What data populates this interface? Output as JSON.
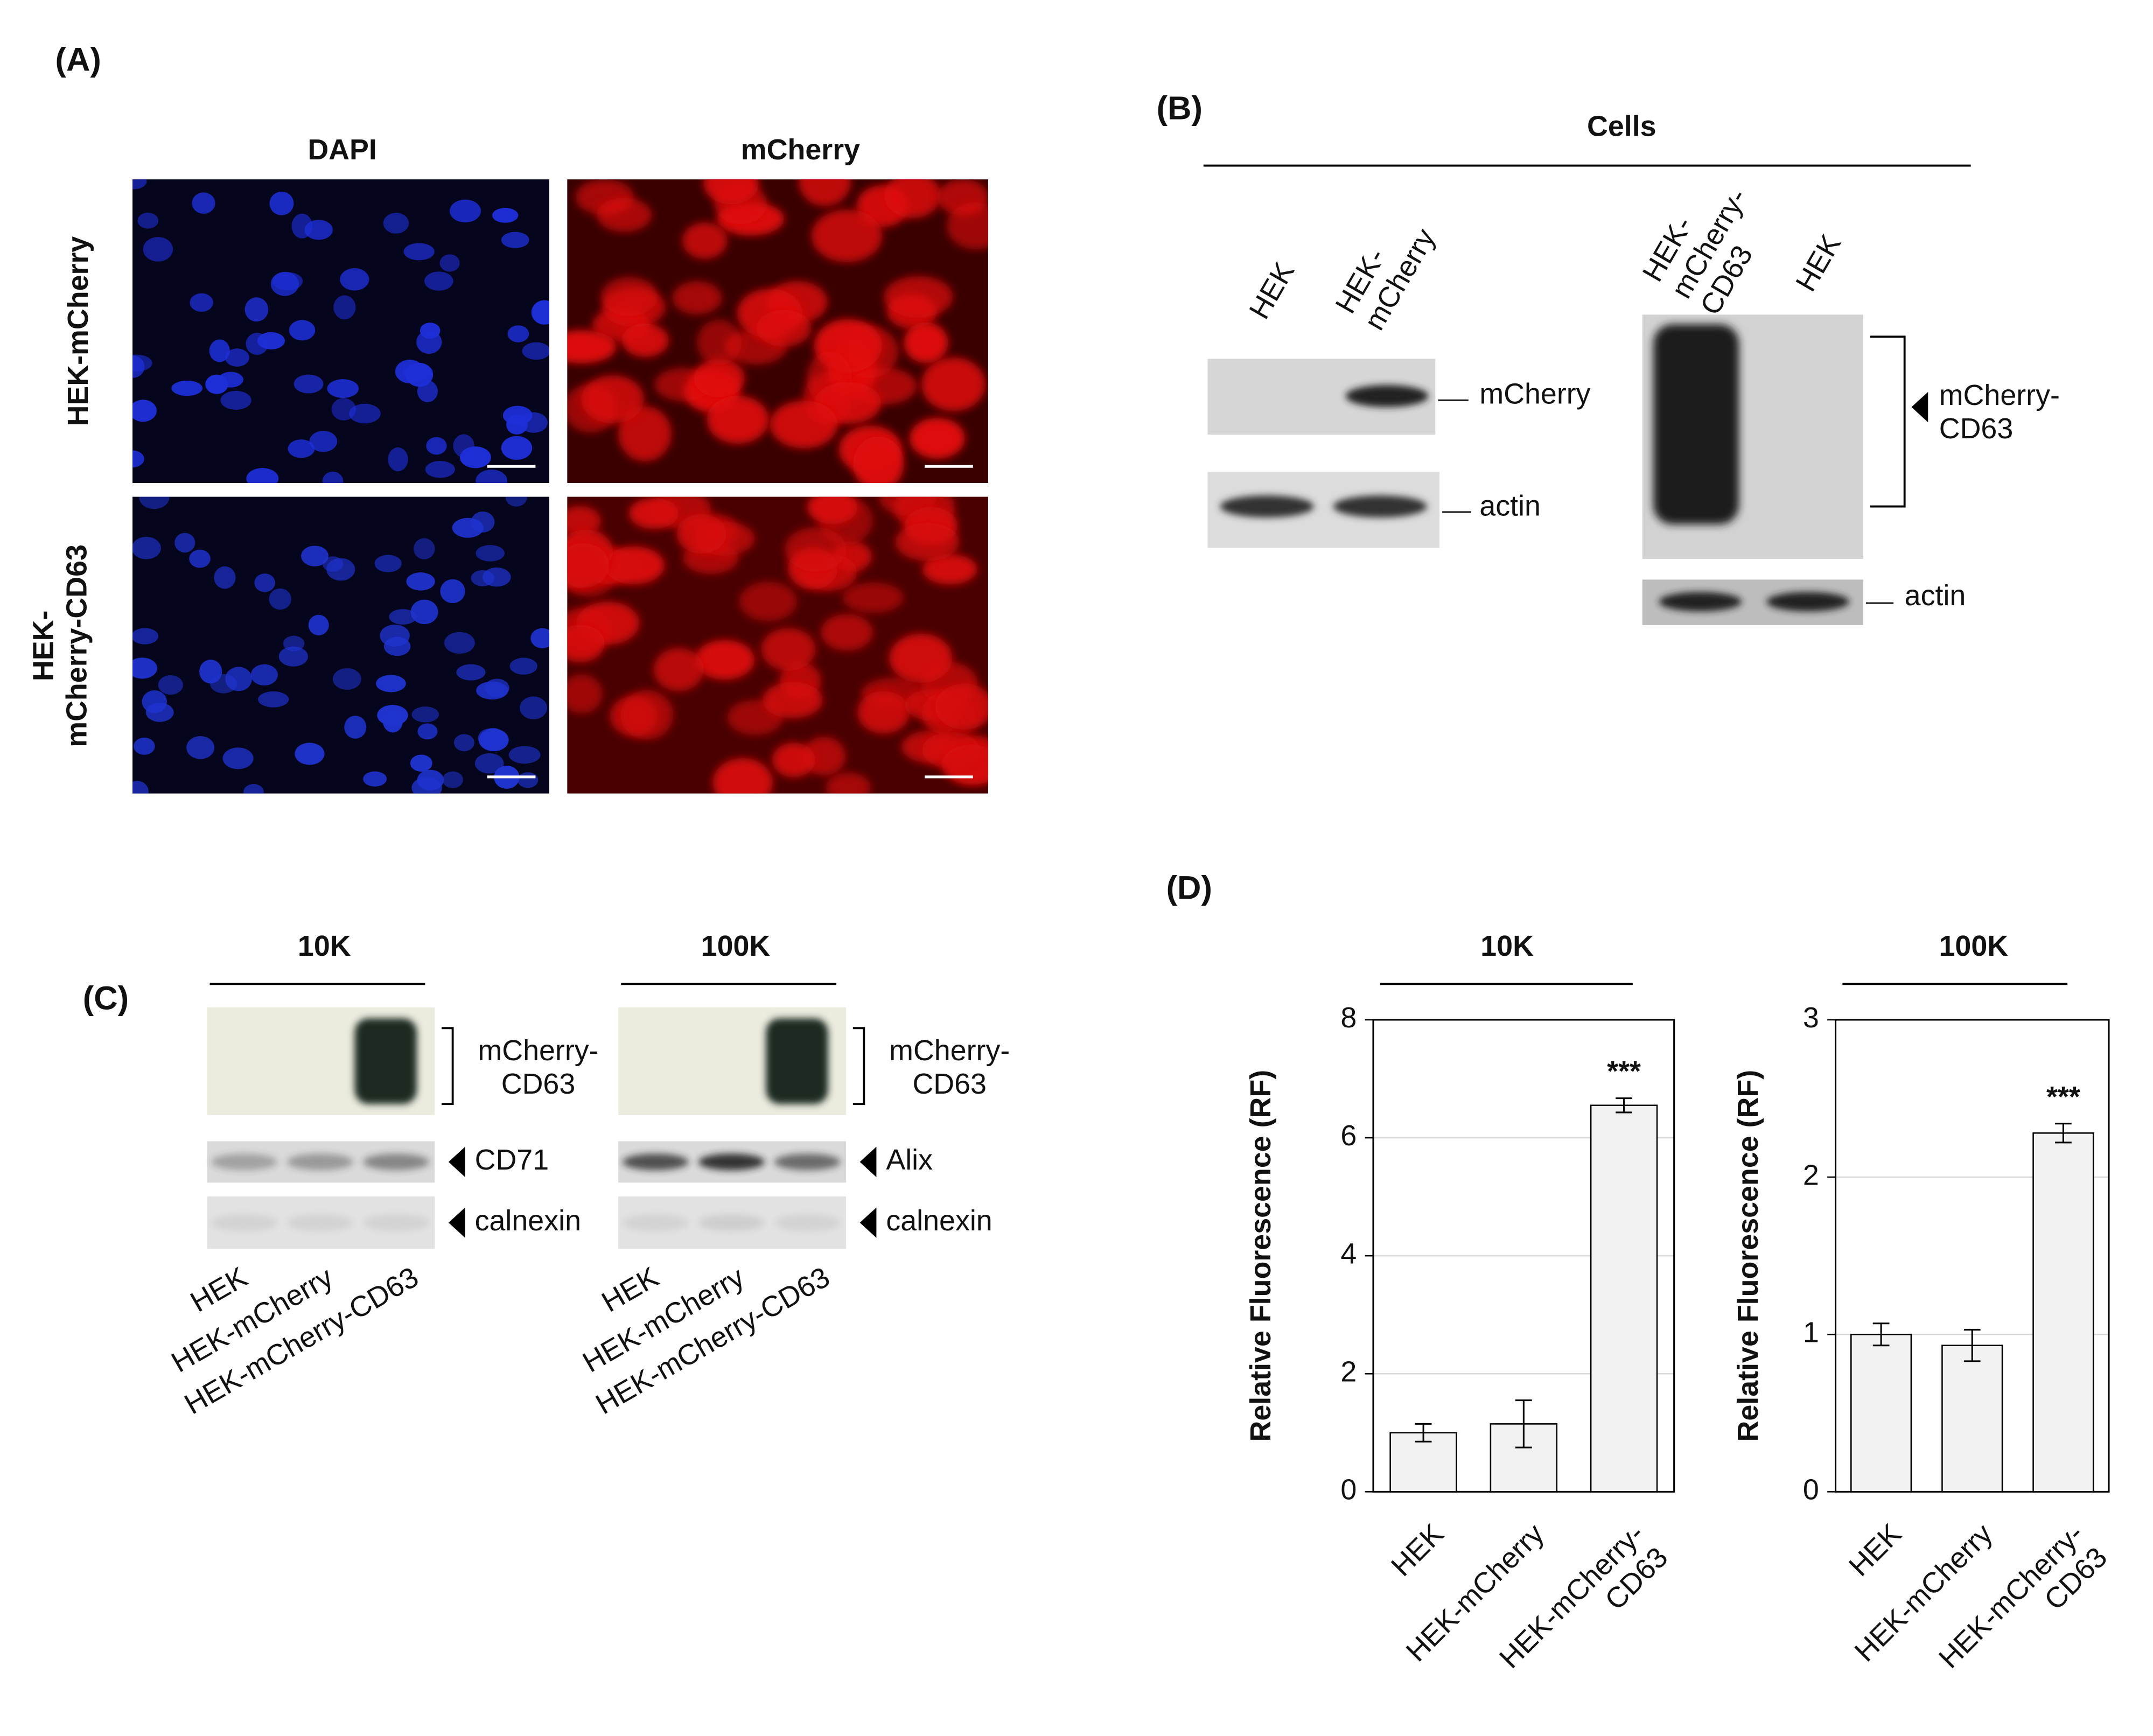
{
  "panel_a": {
    "label": "(A)",
    "columns": [
      "DAPI",
      "mCherry"
    ],
    "rows": [
      "HEK-mCherry",
      "HEK-\nmCherry-CD63"
    ]
  },
  "panel_b": {
    "label": "(B)",
    "title": "Cells",
    "lanes_left": [
      "HEK",
      "HEK-\nmCherry"
    ],
    "lanes_right": [
      "HEK-\nmCherry-\nCD63",
      "HEK"
    ],
    "bands_left": [
      "mCherry",
      "actin"
    ],
    "bands_right": [
      "mCherry-\nCD63",
      "actin"
    ]
  },
  "panel_c": {
    "label": "(C)",
    "blots": [
      {
        "title": "10K",
        "bands": [
          "mCherry-\nCD63",
          "CD71",
          "calnexin"
        ],
        "lanes": [
          "HEK",
          "HEK-mCherry",
          "HEK-mCherry-CD63"
        ]
      },
      {
        "title": "100K",
        "bands": [
          "mCherry-\nCD63",
          "Alix",
          "calnexin"
        ],
        "lanes": [
          "HEK",
          "HEK-mCherry",
          "HEK-mCherry-CD63"
        ]
      }
    ]
  },
  "panel_d": {
    "label": "(D)"
  },
  "chart_data": [
    {
      "type": "bar",
      "title": "10K",
      "y_label": "Relative Fluorescence (RF)",
      "categories": [
        "HEK",
        "HEK-mCherry",
        "HEK-mCherry-\nCD63"
      ],
      "values": [
        1.0,
        1.15,
        6.55
      ],
      "errors": [
        0.15,
        0.4,
        0.12
      ],
      "annotation": "***",
      "color": "#f2f2f2",
      "ylim": [
        0,
        8
      ],
      "yticks": [
        0,
        2,
        4,
        6,
        8
      ],
      "grid": true
    },
    {
      "type": "bar",
      "title": "100K",
      "y_label": "Relative Fluorescence (RF)",
      "categories": [
        "HEK",
        "HEK-mCherry",
        "HEK-mCherry-\nCD63"
      ],
      "values": [
        1.0,
        0.93,
        2.28
      ],
      "errors": [
        0.07,
        0.1,
        0.06
      ],
      "annotation": "***",
      "color": "#f2f2f2",
      "ylim": [
        0,
        3
      ],
      "yticks": [
        0,
        1,
        2,
        3
      ],
      "grid": true
    }
  ]
}
